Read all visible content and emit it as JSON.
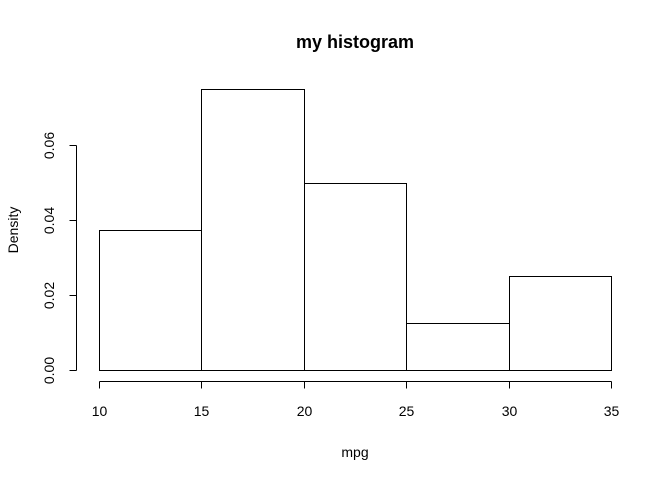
{
  "chart_data": {
    "type": "bar",
    "title": "my histogram",
    "xlabel": "mpg",
    "ylabel": "Density",
    "bins": [
      {
        "from": 10,
        "to": 15,
        "density": 0.0375
      },
      {
        "from": 15,
        "to": 20,
        "density": 0.075
      },
      {
        "from": 20,
        "to": 25,
        "density": 0.05
      },
      {
        "from": 25,
        "to": 30,
        "density": 0.0125
      },
      {
        "from": 30,
        "to": 35,
        "density": 0.025
      }
    ],
    "xlim": [
      10,
      35
    ],
    "ylim": [
      0,
      0.075
    ],
    "x_ticks": [
      "10",
      "15",
      "20",
      "25",
      "30",
      "35"
    ],
    "y_ticks": [
      "0.00",
      "0.02",
      "0.04",
      "0.06"
    ],
    "grid": false,
    "legend": "none",
    "colors": {
      "bar_fill": "#ffffff",
      "bar_stroke": "#000000"
    }
  }
}
